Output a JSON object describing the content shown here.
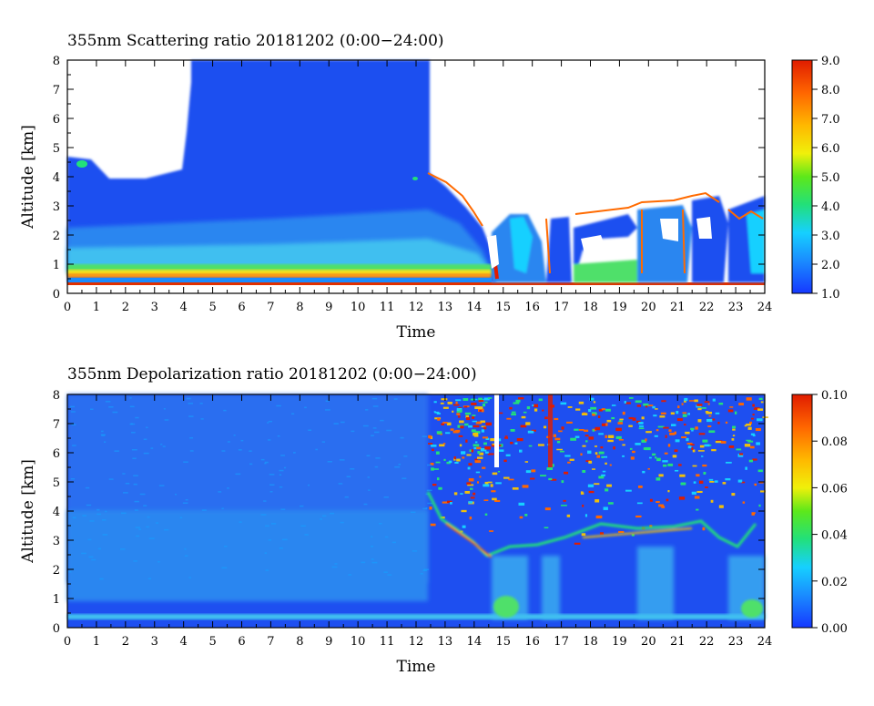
{
  "chart_data": [
    {
      "type": "heatmap",
      "title": "355nm Scattering ratio  20181202 (0:00−24:00)",
      "xlabel": "Time",
      "ylabel": "Altitude [km]",
      "xlim": [
        0,
        24
      ],
      "ylim": [
        0,
        8
      ],
      "x_ticks": [
        "0",
        "1",
        "2",
        "3",
        "4",
        "5",
        "6",
        "7",
        "8",
        "9",
        "10",
        "11",
        "12",
        "13",
        "14",
        "15",
        "16",
        "17",
        "18",
        "19",
        "20",
        "21",
        "22",
        "23",
        "24"
      ],
      "y_ticks": [
        "0",
        "1",
        "2",
        "3",
        "4",
        "5",
        "6",
        "7",
        "8"
      ],
      "colorbar": {
        "min": 1.0,
        "max": 9.0,
        "ticks": [
          "1.0",
          "2.0",
          "3.0",
          "4.0",
          "5.0",
          "6.0",
          "7.0",
          "8.0",
          "9.0"
        ],
        "colors": [
          "#1638ff",
          "#1a8cff",
          "#16d0ff",
          "#22e07a",
          "#5de81a",
          "#f0f00a",
          "#ffb800",
          "#ff6600",
          "#e01c00"
        ]
      },
      "features": {
        "boundary_layer_altitude_km": [
          0.3,
          0.9
        ],
        "cloud_top_clear_region_end_hour": 12.5,
        "no_data_above_cloud_hours": [
          12.5,
          24
        ]
      }
    },
    {
      "type": "heatmap",
      "title": "355nm Depolarization ratio  20181202 (0:00−24:00)",
      "xlabel": "Time",
      "ylabel": "Altitude [km]",
      "xlim": [
        0,
        24
      ],
      "ylim": [
        0,
        8
      ],
      "x_ticks": [
        "0",
        "1",
        "2",
        "3",
        "4",
        "5",
        "6",
        "7",
        "8",
        "9",
        "10",
        "11",
        "12",
        "13",
        "14",
        "15",
        "16",
        "17",
        "18",
        "19",
        "20",
        "21",
        "22",
        "23",
        "24"
      ],
      "y_ticks": [
        "0",
        "1",
        "2",
        "3",
        "4",
        "5",
        "6",
        "7",
        "8"
      ],
      "colorbar": {
        "min": 0.0,
        "max": 0.1,
        "ticks": [
          "0.00",
          "0.02",
          "0.04",
          "0.06",
          "0.08",
          "0.10"
        ],
        "colors": [
          "#1638ff",
          "#1a8cff",
          "#16d0ff",
          "#22e07a",
          "#5de81a",
          "#f0f00a",
          "#ffb800",
          "#ff6600",
          "#e01c00"
        ]
      }
    }
  ]
}
